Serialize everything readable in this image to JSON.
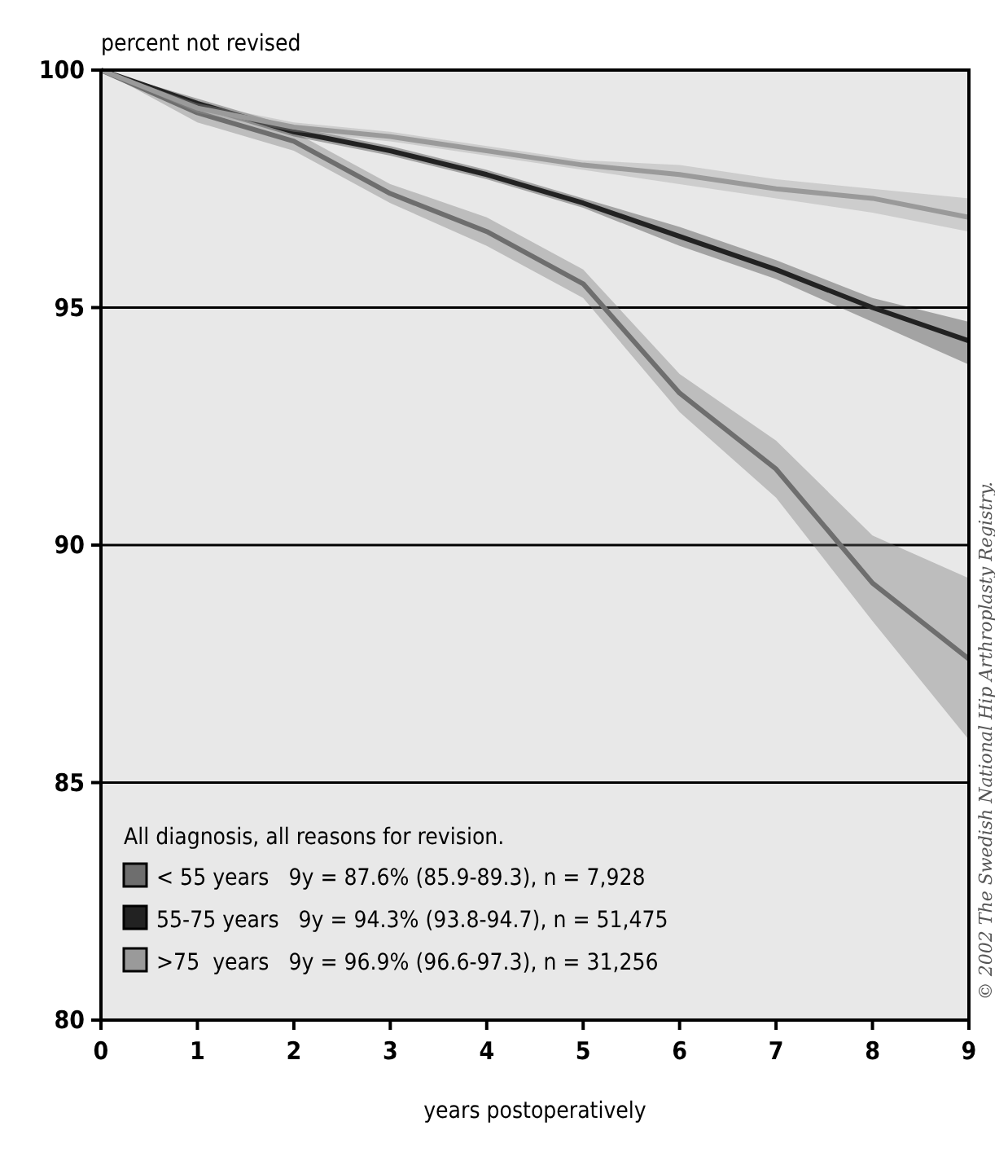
{
  "chart_data": {
    "type": "line",
    "ylabel": "percent not revised",
    "xlabel": "years postoperatively",
    "legend_title": "All diagnosis, all reasons for revision.",
    "legend": "bottom left",
    "grid": "y",
    "line_style": "solid",
    "marker": "none",
    "x": [
      0,
      1,
      2,
      3,
      4,
      5,
      6,
      7,
      8,
      9
    ],
    "series": [
      {
        "name": "< 55 years   9y = 87.6% (85.9-89.3), n = 7,928",
        "color": "#6e6e6e",
        "values": [
          100,
          99.1,
          98.5,
          97.4,
          96.6,
          95.5,
          93.2,
          91.6,
          89.2,
          87.6
        ],
        "lower": [
          100,
          98.9,
          98.3,
          97.2,
          96.3,
          95.2,
          92.8,
          91.0,
          88.4,
          85.9
        ],
        "upper": [
          100,
          99.3,
          98.7,
          97.6,
          96.9,
          95.8,
          93.6,
          92.2,
          90.2,
          89.3
        ]
      },
      {
        "name": "55-75 years   9y = 94.3% (93.8-94.7), n = 51,475",
        "color": "#222222",
        "values": [
          100,
          99.3,
          98.7,
          98.3,
          97.8,
          97.2,
          96.5,
          95.8,
          95.0,
          94.3
        ],
        "lower": [
          100,
          99.2,
          98.6,
          98.2,
          97.7,
          97.1,
          96.3,
          95.6,
          94.7,
          93.8
        ],
        "upper": [
          100,
          99.4,
          98.8,
          98.4,
          97.9,
          97.3,
          96.7,
          96.0,
          95.2,
          94.7
        ]
      },
      {
        "name": ">75  years   9y = 96.9% (96.6-97.3), n = 31,256",
        "color": "#9a9a9a",
        "values": [
          100,
          99.2,
          98.8,
          98.6,
          98.3,
          98.0,
          97.8,
          97.5,
          97.3,
          96.9
        ],
        "lower": [
          100,
          99.1,
          98.7,
          98.5,
          98.2,
          97.9,
          97.6,
          97.3,
          97.0,
          96.6
        ],
        "upper": [
          100,
          99.3,
          98.9,
          98.7,
          98.4,
          98.1,
          98.0,
          97.7,
          97.5,
          97.3
        ]
      }
    ],
    "xlim": [
      0,
      9
    ],
    "xticks": [
      0,
      1,
      2,
      3,
      4,
      5,
      6,
      7,
      8,
      9
    ],
    "ylim": [
      80,
      100
    ],
    "yticks": [
      80,
      85,
      90,
      95,
      100
    ],
    "annotations": [
      "© 2002 The Swedish National Hip Arthroplasty Registry."
    ]
  }
}
